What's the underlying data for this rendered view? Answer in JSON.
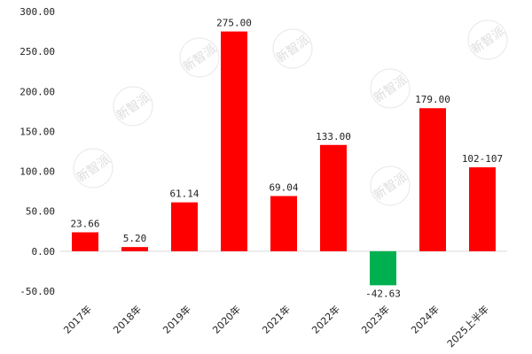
{
  "chart_data": {
    "type": "bar",
    "title": "",
    "xlabel": "",
    "ylabel": "",
    "ylim": [
      -50,
      300
    ],
    "yticks": [
      "300.00",
      "250.00",
      "200.00",
      "150.00",
      "100.00",
      "50.00",
      "0.00",
      "-50.00"
    ],
    "grid": false,
    "legend": "none",
    "categories": [
      "2017年",
      "2018年",
      "2019年",
      "2020年",
      "2021年",
      "2022年",
      "2023年",
      "2024年",
      "2025上半年"
    ],
    "values": [
      23.66,
      5.2,
      61.14,
      275.0,
      69.04,
      133.0,
      -42.63,
      179.0,
      105
    ],
    "data_labels": [
      "23.66",
      "5.20",
      "61.14",
      "275.00",
      "69.04",
      "133.00",
      "-42.63",
      "179.00",
      "102-107"
    ],
    "colors": {
      "positive": "#ff0000",
      "negative": "#00b050",
      "axis": "#d9d9d9"
    }
  },
  "watermark": "新智派"
}
